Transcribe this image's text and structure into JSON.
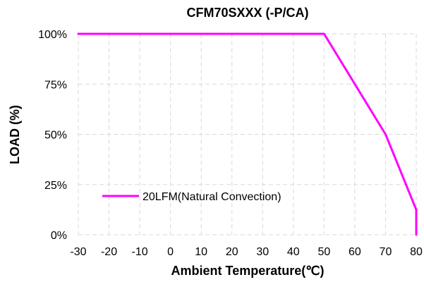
{
  "chart_data": {
    "type": "line",
    "title": "CFM70SXXX (-P/CA)",
    "xlabel": "Ambient Temperature(℃)",
    "ylabel": "LOAD (%)",
    "xlim": [
      -30,
      80
    ],
    "ylim": [
      0,
      100
    ],
    "x_ticks": [
      "-30",
      "-20",
      "-10",
      "0",
      "10",
      "20",
      "30",
      "40",
      "50",
      "60",
      "70",
      "80"
    ],
    "y_ticks": [
      "0%",
      "25%",
      "50%",
      "75%",
      "100%"
    ],
    "grid": true,
    "legend_position": "bottom-left",
    "series": [
      {
        "name": "20LFM(Natural Convection)",
        "color": "#ff00ff",
        "points": [
          [
            -30,
            100
          ],
          [
            50,
            100
          ],
          [
            70,
            50
          ],
          [
            80,
            12.5
          ],
          [
            80,
            0
          ]
        ]
      }
    ]
  }
}
